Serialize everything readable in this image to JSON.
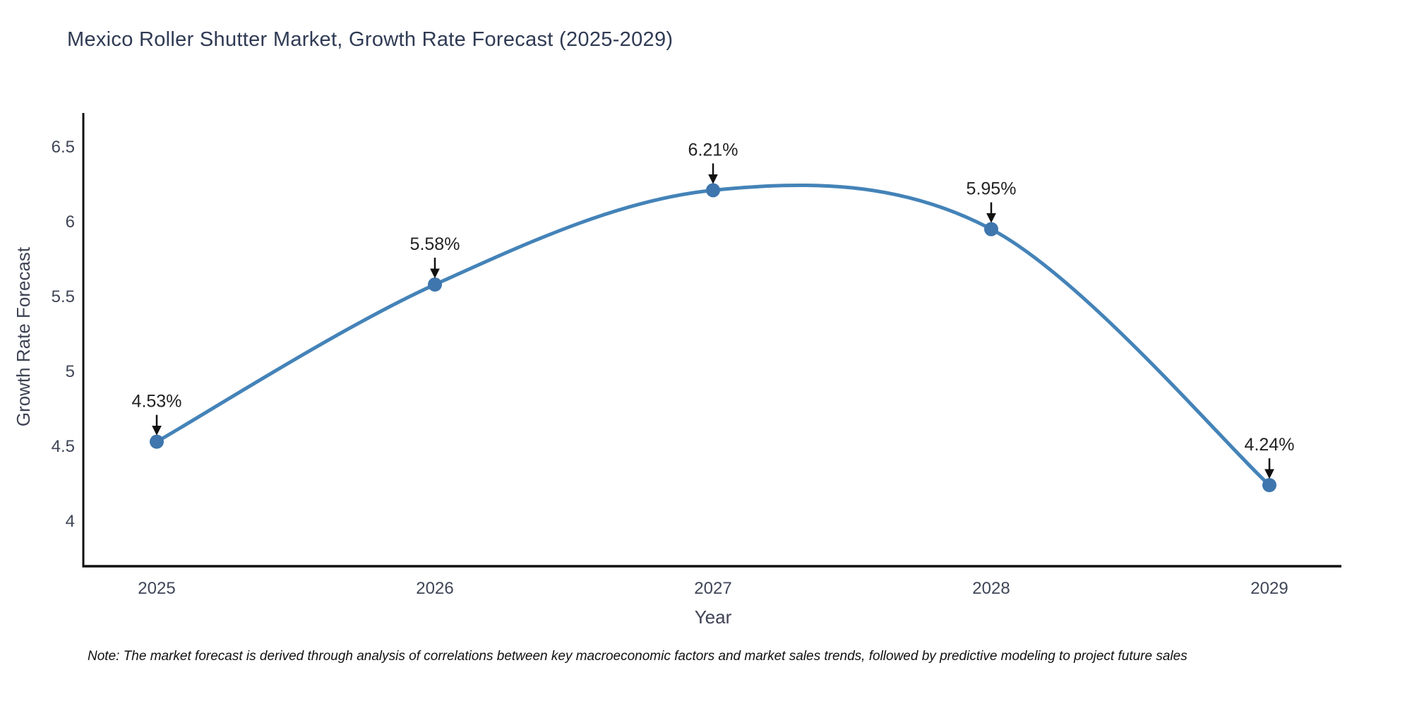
{
  "title": "Mexico Roller Shutter Market, Growth Rate Forecast (2025-2029)",
  "footnote": "Note: The market forecast is derived through analysis of correlations between key macroeconomic factors and market sales trends, followed by predictive modeling to project future sales",
  "chart_data": {
    "type": "line",
    "title": "Mexico Roller Shutter Market, Growth Rate Forecast (2025-2029)",
    "xlabel": "Year",
    "ylabel": "Growth Rate Forecast",
    "categories": [
      "2025",
      "2026",
      "2027",
      "2028",
      "2029"
    ],
    "values": [
      4.53,
      5.58,
      6.21,
      5.95,
      4.24
    ],
    "point_labels": [
      "4.53%",
      "5.58%",
      "6.21%",
      "5.95%",
      "4.24%"
    ],
    "yticks": [
      6.5,
      6,
      5.5,
      5,
      4.5,
      4
    ],
    "ylim": [
      3.7,
      6.73
    ],
    "grid": false,
    "legend": false,
    "line_color": "#4483b8",
    "marker_color": "#3e76ad",
    "annotation_color": "#232323",
    "arrow_color": "#111111",
    "axis_color": "#111111",
    "tick_color": "#3f4657",
    "axis_title_color": "#3e4354",
    "title_color": "#2f3a54",
    "background_color": "#ffffff"
  }
}
